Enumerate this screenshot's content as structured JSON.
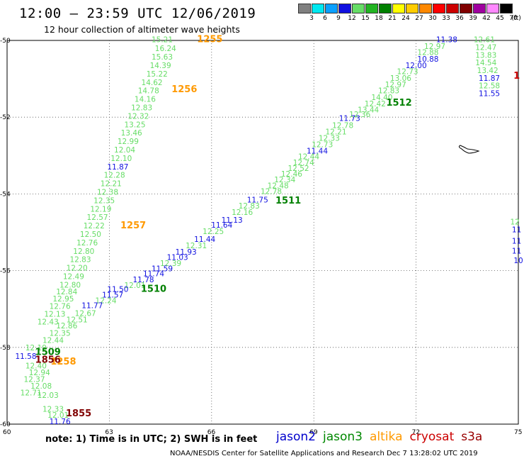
{
  "header": {
    "title": "12:00 — 23:59 UTC 12/06/2019",
    "subtitle": "12 hour collection of altimeter wave heights"
  },
  "legend": {
    "unit": "(ft)",
    "bins": [
      {
        "label": "3",
        "color": "#808080"
      },
      {
        "label": "6",
        "color": "#00e8f0"
      },
      {
        "label": "9",
        "color": "#0aa0ff"
      },
      {
        "label": "12",
        "color": "#1010e0"
      },
      {
        "label": "15",
        "color": "#66dd66"
      },
      {
        "label": "18",
        "color": "#22b422"
      },
      {
        "label": "21",
        "color": "#008000"
      },
      {
        "label": "24",
        "color": "#ffff00"
      },
      {
        "label": "27",
        "color": "#ffcc00"
      },
      {
        "label": "30",
        "color": "#ff8800"
      },
      {
        "label": "33",
        "color": "#ff0000"
      },
      {
        "label": "36",
        "color": "#cc0000"
      },
      {
        "label": "39",
        "color": "#800000"
      },
      {
        "label": "42",
        "color": "#a000a0"
      },
      {
        "label": "45",
        "color": "#ff88ff"
      },
      {
        "label": "70",
        "color": "#000000"
      }
    ]
  },
  "map": {
    "lon_ticks": [
      "60",
      "63",
      "66",
      "69",
      "72",
      "75"
    ],
    "lat_ticks": [
      "-50",
      "-52",
      "-54",
      "-56",
      "-58",
      "-60"
    ],
    "lon_range": [
      60,
      75
    ],
    "lat_range": [
      -50,
      -60
    ],
    "colors": {
      "green": "#66dd66",
      "blue": "#1010e0",
      "orange": "#ff9900",
      "darkgreen": "#008000",
      "maroon": "#800000",
      "red": "#cc0000"
    },
    "track_labels": [
      {
        "text": "1255",
        "lon": 65.95,
        "lat": -50.05,
        "color": "orange"
      },
      {
        "text": "1256",
        "lon": 65.2,
        "lat": -51.35,
        "color": "orange"
      },
      {
        "text": "1257",
        "lon": 63.7,
        "lat": -54.9,
        "color": "orange"
      },
      {
        "text": "1258",
        "lon": 61.65,
        "lat": -58.45,
        "color": "orange"
      },
      {
        "text": "1509",
        "lon": 61.2,
        "lat": -58.2,
        "color": "darkgreen"
      },
      {
        "text": "1510",
        "lon": 64.3,
        "lat": -56.55,
        "color": "darkgreen"
      },
      {
        "text": "1511",
        "lon": 68.25,
        "lat": -54.25,
        "color": "darkgreen"
      },
      {
        "text": "1512",
        "lon": 71.5,
        "lat": -51.7,
        "color": "darkgreen"
      },
      {
        "text": "1856",
        "lon": 61.2,
        "lat": -58.4,
        "color": "maroon"
      },
      {
        "text": "1855",
        "lon": 62.1,
        "lat": -59.8,
        "color": "maroon"
      },
      {
        "text": "1",
        "lon": 74.95,
        "lat": -51.0,
        "color": "red"
      }
    ],
    "tracks": [
      {
        "id": "left-track",
        "points": [
          {
            "v": "15.21",
            "lon": 64.55,
            "lat": -50.05,
            "c": "green"
          },
          {
            "v": "16.24",
            "lon": 64.65,
            "lat": -50.28,
            "c": "green"
          },
          {
            "v": "15.63",
            "lon": 64.55,
            "lat": -50.5,
            "c": "green"
          },
          {
            "v": "14.39",
            "lon": 64.5,
            "lat": -50.72,
            "c": "green"
          },
          {
            "v": "15.22",
            "lon": 64.4,
            "lat": -50.94,
            "c": "green"
          },
          {
            "v": "14.62",
            "lon": 64.25,
            "lat": -51.16,
            "c": "green"
          },
          {
            "v": "14.78",
            "lon": 64.15,
            "lat": -51.38,
            "c": "green"
          },
          {
            "v": "14.16",
            "lon": 64.05,
            "lat": -51.6,
            "c": "green"
          },
          {
            "v": "12.83",
            "lon": 63.95,
            "lat": -51.82,
            "c": "green"
          },
          {
            "v": "12.32",
            "lon": 63.85,
            "lat": -52.04,
            "c": "green"
          },
          {
            "v": "13.25",
            "lon": 63.75,
            "lat": -52.26,
            "c": "green"
          },
          {
            "v": "13.46",
            "lon": 63.65,
            "lat": -52.48,
            "c": "green"
          },
          {
            "v": "12.99",
            "lon": 63.55,
            "lat": -52.7,
            "c": "green"
          },
          {
            "v": "12.04",
            "lon": 63.45,
            "lat": -52.92,
            "c": "green"
          },
          {
            "v": "12.10",
            "lon": 63.35,
            "lat": -53.14,
            "c": "green"
          },
          {
            "v": "11.87",
            "lon": 63.25,
            "lat": -53.36,
            "c": "blue"
          },
          {
            "v": "12.28",
            "lon": 63.15,
            "lat": -53.58,
            "c": "green"
          },
          {
            "v": "12.21",
            "lon": 63.05,
            "lat": -53.8,
            "c": "green"
          },
          {
            "v": "12.38",
            "lon": 62.95,
            "lat": -54.02,
            "c": "green"
          },
          {
            "v": "12.35",
            "lon": 62.85,
            "lat": -54.24,
            "c": "green"
          },
          {
            "v": "12.19",
            "lon": 62.75,
            "lat": -54.46,
            "c": "green"
          },
          {
            "v": "12.57",
            "lon": 62.65,
            "lat": -54.68,
            "c": "green"
          },
          {
            "v": "12.22",
            "lon": 62.55,
            "lat": -54.9,
            "c": "green"
          },
          {
            "v": "12.50",
            "lon": 62.45,
            "lat": -55.12,
            "c": "green"
          },
          {
            "v": "12.76",
            "lon": 62.35,
            "lat": -55.34,
            "c": "green"
          },
          {
            "v": "12.80",
            "lon": 62.25,
            "lat": -55.56,
            "c": "green"
          },
          {
            "v": "12.83",
            "lon": 62.15,
            "lat": -55.78,
            "c": "green"
          },
          {
            "v": "12.20",
            "lon": 62.05,
            "lat": -56.0,
            "c": "green"
          },
          {
            "v": "12.49",
            "lon": 61.95,
            "lat": -56.22,
            "c": "green"
          },
          {
            "v": "12.80",
            "lon": 61.85,
            "lat": -56.44,
            "c": "green"
          },
          {
            "v": "12.84",
            "lon": 61.75,
            "lat": -56.62,
            "c": "green"
          },
          {
            "v": "12.95",
            "lon": 61.65,
            "lat": -56.8,
            "c": "green"
          },
          {
            "v": "12.76",
            "lon": 61.55,
            "lat": -57.0,
            "c": "green"
          },
          {
            "v": "12.13",
            "lon": 61.4,
            "lat": -57.2,
            "c": "green"
          },
          {
            "v": "12.43",
            "lon": 61.2,
            "lat": -57.4,
            "c": "green"
          }
        ]
      },
      {
        "id": "middle-track",
        "points": [
          {
            "v": "11.38",
            "lon": 72.9,
            "lat": -50.05,
            "c": "blue"
          },
          {
            "v": "12.97",
            "lon": 72.55,
            "lat": -50.22,
            "c": "green"
          },
          {
            "v": "12.88",
            "lon": 72.35,
            "lat": -50.38,
            "c": "green"
          },
          {
            "v": "10.88",
            "lon": 72.35,
            "lat": -50.55,
            "c": "blue"
          },
          {
            "v": "12.00",
            "lon": 72.0,
            "lat": -50.72,
            "c": "blue"
          },
          {
            "v": "12.73",
            "lon": 71.75,
            "lat": -50.88,
            "c": "green"
          },
          {
            "v": "13.06",
            "lon": 71.55,
            "lat": -51.05,
            "c": "green"
          },
          {
            "v": "12.97",
            "lon": 71.4,
            "lat": -51.22,
            "c": "green"
          },
          {
            "v": "12.83",
            "lon": 71.2,
            "lat": -51.38,
            "c": "green"
          },
          {
            "v": "14.40",
            "lon": 71.0,
            "lat": -51.55,
            "c": "green"
          },
          {
            "v": "12.42",
            "lon": 70.8,
            "lat": -51.72,
            "c": "green"
          },
          {
            "v": "13.44",
            "lon": 70.6,
            "lat": -51.88,
            "c": "green"
          },
          {
            "v": "12.36",
            "lon": 70.35,
            "lat": -52.0,
            "c": "green"
          },
          {
            "v": "11.73",
            "lon": 70.05,
            "lat": -52.1,
            "c": "blue"
          },
          {
            "v": "12.78",
            "lon": 69.85,
            "lat": -52.28,
            "c": "green"
          },
          {
            "v": "12.21",
            "lon": 69.65,
            "lat": -52.45,
            "c": "green"
          },
          {
            "v": "12.33",
            "lon": 69.45,
            "lat": -52.62,
            "c": "green"
          },
          {
            "v": "12.73",
            "lon": 69.25,
            "lat": -52.78,
            "c": "green"
          },
          {
            "v": "11.44",
            "lon": 69.1,
            "lat": -52.95,
            "c": "blue"
          },
          {
            "v": "12.44",
            "lon": 68.85,
            "lat": -53.1,
            "c": "green"
          },
          {
            "v": "12.74",
            "lon": 68.7,
            "lat": -53.25,
            "c": "green"
          },
          {
            "v": "12.52",
            "lon": 68.55,
            "lat": -53.4,
            "c": "green"
          },
          {
            "v": "12.46",
            "lon": 68.35,
            "lat": -53.55,
            "c": "green"
          },
          {
            "v": "12.34",
            "lon": 68.15,
            "lat": -53.7,
            "c": "green"
          },
          {
            "v": "12.48",
            "lon": 67.95,
            "lat": -53.85,
            "c": "green"
          },
          {
            "v": "12.78",
            "lon": 67.75,
            "lat": -54.0,
            "c": "green"
          },
          {
            "v": "11.75",
            "lon": 67.35,
            "lat": -54.22,
            "c": "blue"
          },
          {
            "v": "12.83",
            "lon": 67.1,
            "lat": -54.38,
            "c": "green"
          },
          {
            "v": "12.16",
            "lon": 66.9,
            "lat": -54.55,
            "c": "green"
          },
          {
            "v": "11.13",
            "lon": 66.6,
            "lat": -54.75,
            "c": "blue"
          },
          {
            "v": "11.64",
            "lon": 66.3,
            "lat": -54.88,
            "c": "blue"
          },
          {
            "v": "12.25",
            "lon": 66.05,
            "lat": -55.05,
            "c": "green"
          },
          {
            "v": "11.44",
            "lon": 65.8,
            "lat": -55.25,
            "c": "blue"
          },
          {
            "v": "12.31",
            "lon": 65.55,
            "lat": -55.42,
            "c": "green"
          },
          {
            "v": "11.93",
            "lon": 65.25,
            "lat": -55.58,
            "c": "blue"
          },
          {
            "v": "11.03",
            "lon": 65.0,
            "lat": -55.72,
            "c": "blue"
          },
          {
            "v": "12.39",
            "lon": 64.8,
            "lat": -55.88,
            "c": "green"
          },
          {
            "v": "11.59",
            "lon": 64.55,
            "lat": -56.02,
            "c": "blue"
          },
          {
            "v": "11.74",
            "lon": 64.3,
            "lat": -56.15,
            "c": "blue"
          },
          {
            "v": "11.78",
            "lon": 64.0,
            "lat": -56.3,
            "c": "blue"
          },
          {
            "v": "12.01",
            "lon": 63.75,
            "lat": -56.45,
            "c": "green"
          },
          {
            "v": "11.50",
            "lon": 63.25,
            "lat": -56.55,
            "c": "blue"
          },
          {
            "v": "11.57",
            "lon": 63.1,
            "lat": -56.7,
            "c": "blue"
          },
          {
            "v": "12.24",
            "lon": 62.9,
            "lat": -56.85,
            "c": "green"
          },
          {
            "v": "11.77",
            "lon": 62.5,
            "lat": -56.98,
            "c": "blue"
          },
          {
            "v": "12.67",
            "lon": 62.3,
            "lat": -57.18,
            "c": "green"
          },
          {
            "v": "12.51",
            "lon": 62.05,
            "lat": -57.35,
            "c": "green"
          },
          {
            "v": "12.86",
            "lon": 61.75,
            "lat": -57.5,
            "c": "green"
          },
          {
            "v": "12.35",
            "lon": 61.55,
            "lat": -57.7,
            "c": "green"
          },
          {
            "v": "12.44",
            "lon": 61.35,
            "lat": -57.88,
            "c": "green"
          },
          {
            "v": "12.19",
            "lon": 60.85,
            "lat": -58.08,
            "c": "green"
          },
          {
            "v": "11.58",
            "lon": 60.55,
            "lat": -58.3,
            "c": "blue"
          }
        ]
      },
      {
        "id": "bottom-left-track",
        "points": [
          {
            "v": "12.40",
            "lon": 60.85,
            "lat": -58.55,
            "c": "green"
          },
          {
            "v": "12.94",
            "lon": 60.95,
            "lat": -58.72,
            "c": "green"
          },
          {
            "v": "12.37",
            "lon": 60.8,
            "lat": -58.9,
            "c": "green"
          },
          {
            "v": "12.08",
            "lon": 61.0,
            "lat": -59.08,
            "c": "green"
          },
          {
            "v": "12.71",
            "lon": 60.7,
            "lat": -59.25,
            "c": "green"
          },
          {
            "v": "12.03",
            "lon": 61.2,
            "lat": -59.32,
            "c": "green"
          },
          {
            "v": "12.33",
            "lon": 61.35,
            "lat": -59.68,
            "c": "green"
          },
          {
            "v": "12.01",
            "lon": 61.5,
            "lat": -59.83,
            "c": "green"
          },
          {
            "v": "11.76",
            "lon": 61.55,
            "lat": -60.0,
            "c": "blue"
          }
        ]
      },
      {
        "id": "right-track",
        "points": [
          {
            "v": "12.61",
            "lon": 74.0,
            "lat": -50.05,
            "c": "green"
          },
          {
            "v": "12.47",
            "lon": 74.05,
            "lat": -50.25,
            "c": "green"
          },
          {
            "v": "13.83",
            "lon": 74.05,
            "lat": -50.45,
            "c": "green"
          },
          {
            "v": "14.54",
            "lon": 74.05,
            "lat": -50.65,
            "c": "green"
          },
          {
            "v": "13.42",
            "lon": 74.1,
            "lat": -50.85,
            "c": "green"
          },
          {
            "v": "11.87",
            "lon": 74.15,
            "lat": -51.05,
            "c": "blue"
          },
          {
            "v": "12.58",
            "lon": 74.15,
            "lat": -51.25,
            "c": "green"
          },
          {
            "v": "11.55",
            "lon": 74.15,
            "lat": -51.45,
            "c": "blue"
          }
        ]
      },
      {
        "id": "far-right-track",
        "points": [
          {
            "v": "12",
            "lon": 74.9,
            "lat": -54.8,
            "c": "green"
          },
          {
            "v": "11",
            "lon": 74.95,
            "lat": -55.0,
            "c": "blue"
          },
          {
            "v": "11",
            "lon": 74.95,
            "lat": -55.3,
            "c": "blue"
          },
          {
            "v": "11",
            "lon": 74.95,
            "lat": -55.55,
            "c": "blue"
          },
          {
            "v": "10",
            "lon": 75.0,
            "lat": -55.8,
            "c": "blue"
          }
        ]
      }
    ]
  },
  "footnote": "note: 1) Time is in UTC; 2) SWH is in feet",
  "satellites": [
    {
      "name": "jason2",
      "color": "#0000cc"
    },
    {
      "name": "jason3",
      "color": "#008800"
    },
    {
      "name": "altika",
      "color": "#ff9900"
    },
    {
      "name": "cryosat",
      "color": "#cc0000"
    },
    {
      "name": "s3a",
      "color": "#990000"
    }
  ],
  "credit": "NOAA/NESDIS Center for Satellite Applications and Research    Dec  7 13:28:02 UTC 2019"
}
